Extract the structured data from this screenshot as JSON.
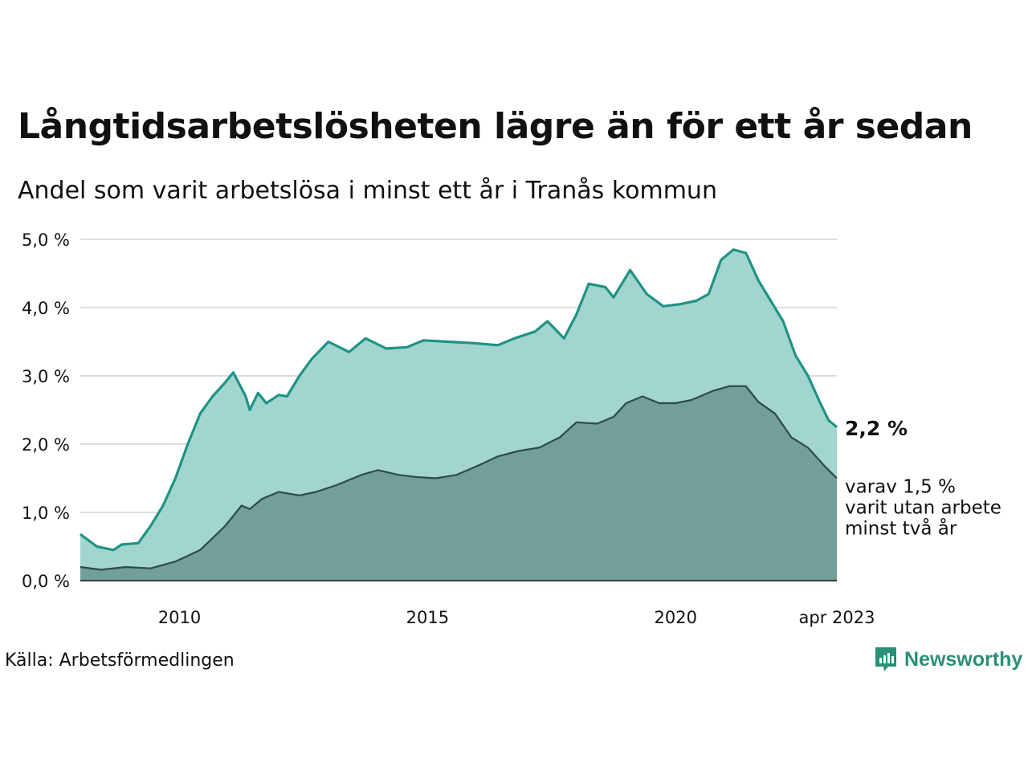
{
  "title": "Långtidsarbetslösheten lägre än för ett år sedan",
  "subtitle": "Andel som varit arbetslösa i minst ett år i Tranås kommun",
  "source": "Källa: Arbetsförmedlingen",
  "brand": {
    "name": "Newsworthy",
    "icon": "newsworthy-logo-icon"
  },
  "colors": {
    "upper_line": "#1f9384",
    "upper_fill": "#a3d5cf",
    "lower_line": "#2f4a47",
    "lower_fill": "#729f97",
    "grid": "#dddddd"
  },
  "chart_data": {
    "type": "area",
    "ylim": [
      0,
      5
    ],
    "yticks": [
      {
        "value": 0,
        "label": "0,0 %"
      },
      {
        "value": 1,
        "label": "1,0 %"
      },
      {
        "value": 2,
        "label": "2,0 %"
      },
      {
        "value": 3,
        "label": "3,0 %"
      },
      {
        "value": 4,
        "label": "4,0 %"
      },
      {
        "value": 5,
        "label": "5,0 %"
      }
    ],
    "xlim": [
      "2008-01",
      "2023-04"
    ],
    "xticks": [
      {
        "value": "2010-01",
        "label": "2010"
      },
      {
        "value": "2015-01",
        "label": "2015"
      },
      {
        "value": "2020-01",
        "label": "2020"
      },
      {
        "value": "2023-04",
        "label": "apr 2023"
      }
    ],
    "end_label": "2,2 %",
    "note_lines": [
      "varav 1,5 %",
      "varit utan arbete",
      "minst två år"
    ],
    "series": [
      {
        "points": [
          [
            "2008-01",
            0.68
          ],
          [
            "2008-05",
            0.5
          ],
          [
            "2008-09",
            0.45
          ],
          [
            "2008-11",
            0.53
          ],
          [
            "2009-03",
            0.55
          ],
          [
            "2009-06",
            0.8
          ],
          [
            "2009-09",
            1.1
          ],
          [
            "2009-12",
            1.5
          ],
          [
            "2010-03",
            2.0
          ],
          [
            "2010-06",
            2.45
          ],
          [
            "2010-09",
            2.7
          ],
          [
            "2010-12",
            2.9
          ],
          [
            "2011-02",
            3.05
          ],
          [
            "2011-05",
            2.7
          ],
          [
            "2011-06",
            2.5
          ],
          [
            "2011-08",
            2.75
          ],
          [
            "2011-10",
            2.6
          ],
          [
            "2012-01",
            2.72
          ],
          [
            "2012-03",
            2.7
          ],
          [
            "2012-06",
            3.0
          ],
          [
            "2012-09",
            3.25
          ],
          [
            "2013-01",
            3.5
          ],
          [
            "2013-06",
            3.35
          ],
          [
            "2013-10",
            3.55
          ],
          [
            "2014-03",
            3.4
          ],
          [
            "2014-08",
            3.42
          ],
          [
            "2014-12",
            3.52
          ],
          [
            "2015-06",
            3.5
          ],
          [
            "2015-12",
            3.48
          ],
          [
            "2016-06",
            3.45
          ],
          [
            "2016-10",
            3.55
          ],
          [
            "2017-03",
            3.65
          ],
          [
            "2017-06",
            3.8
          ],
          [
            "2017-10",
            3.55
          ],
          [
            "2018-01",
            3.9
          ],
          [
            "2018-04",
            4.35
          ],
          [
            "2018-08",
            4.3
          ],
          [
            "2018-10",
            4.15
          ],
          [
            "2019-02",
            4.55
          ],
          [
            "2019-06",
            4.2
          ],
          [
            "2019-10",
            4.02
          ],
          [
            "2020-02",
            4.05
          ],
          [
            "2020-06",
            4.1
          ],
          [
            "2020-09",
            4.2
          ],
          [
            "2020-12",
            4.7
          ],
          [
            "2021-03",
            4.85
          ],
          [
            "2021-06",
            4.8
          ],
          [
            "2021-09",
            4.4
          ],
          [
            "2021-12",
            4.1
          ],
          [
            "2022-03",
            3.8
          ],
          [
            "2022-06",
            3.3
          ],
          [
            "2022-09",
            3.0
          ],
          [
            "2022-12",
            2.6
          ],
          [
            "2023-02",
            2.35
          ],
          [
            "2023-04",
            2.25
          ]
        ]
      },
      {
        "points": [
          [
            "2008-01",
            0.2
          ],
          [
            "2008-06",
            0.16
          ],
          [
            "2008-12",
            0.2
          ],
          [
            "2009-06",
            0.18
          ],
          [
            "2009-12",
            0.28
          ],
          [
            "2010-06",
            0.45
          ],
          [
            "2010-12",
            0.8
          ],
          [
            "2011-04",
            1.1
          ],
          [
            "2011-06",
            1.05
          ],
          [
            "2011-09",
            1.2
          ],
          [
            "2012-01",
            1.3
          ],
          [
            "2012-06",
            1.25
          ],
          [
            "2012-10",
            1.3
          ],
          [
            "2013-03",
            1.4
          ],
          [
            "2013-09",
            1.55
          ],
          [
            "2014-01",
            1.62
          ],
          [
            "2014-06",
            1.55
          ],
          [
            "2014-10",
            1.52
          ],
          [
            "2015-03",
            1.5
          ],
          [
            "2015-08",
            1.55
          ],
          [
            "2016-01",
            1.68
          ],
          [
            "2016-06",
            1.82
          ],
          [
            "2016-11",
            1.9
          ],
          [
            "2017-04",
            1.95
          ],
          [
            "2017-09",
            2.1
          ],
          [
            "2018-01",
            2.32
          ],
          [
            "2018-06",
            2.3
          ],
          [
            "2018-10",
            2.4
          ],
          [
            "2019-01",
            2.6
          ],
          [
            "2019-05",
            2.7
          ],
          [
            "2019-09",
            2.6
          ],
          [
            "2020-01",
            2.6
          ],
          [
            "2020-05",
            2.65
          ],
          [
            "2020-10",
            2.78
          ],
          [
            "2021-02",
            2.85
          ],
          [
            "2021-06",
            2.85
          ],
          [
            "2021-09",
            2.62
          ],
          [
            "2022-01",
            2.45
          ],
          [
            "2022-05",
            2.1
          ],
          [
            "2022-09",
            1.95
          ],
          [
            "2023-01",
            1.68
          ],
          [
            "2023-04",
            1.5
          ]
        ]
      }
    ]
  }
}
